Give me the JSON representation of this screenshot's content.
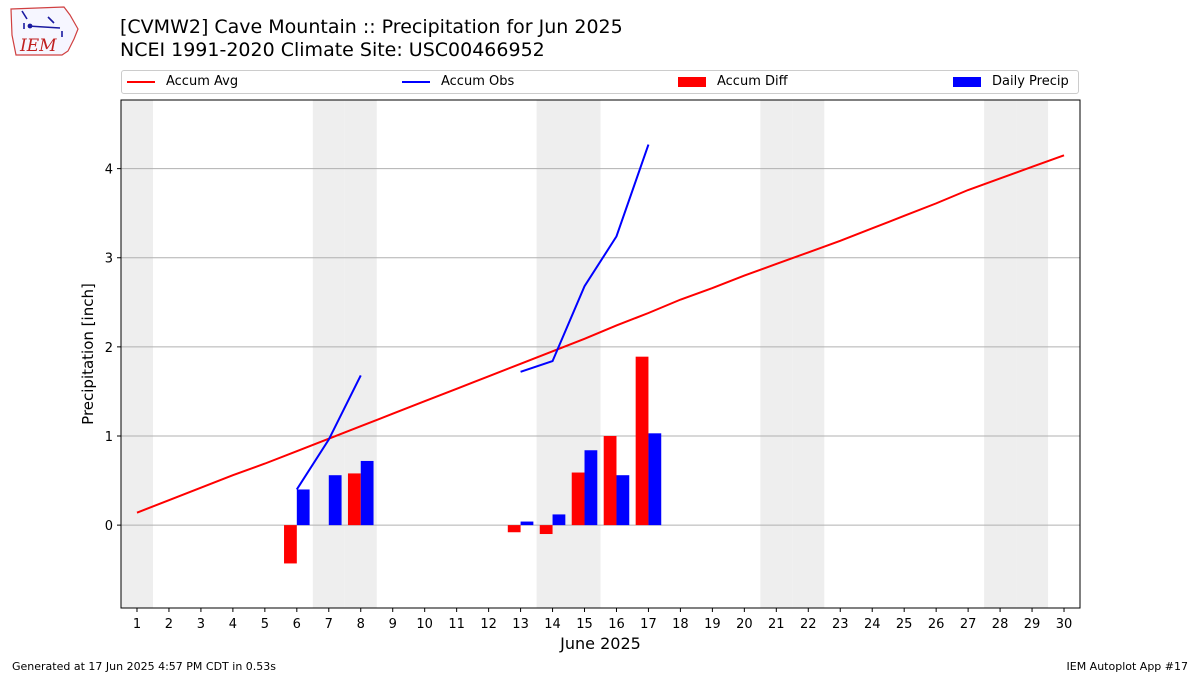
{
  "header": {
    "title_line1": "[CVMW2] Cave Mountain :: Precipitation for Jun 2025",
    "title_line2": "NCEI 1991-2020 Climate Site: USC00466952",
    "logo_text": "IEM"
  },
  "footer": {
    "left": "Generated at 17 Jun 2025 4:57 PM CDT in 0.53s",
    "right": "IEM Autoplot App #17"
  },
  "colors": {
    "avg": "#ff0000",
    "obs": "#0000ff",
    "diff": "#ff0000",
    "daily": "#0000ff",
    "weekend": "#eeeeee",
    "grid": "#b0b0b0"
  },
  "chart_data": {
    "type": "bar",
    "xlabel": "June 2025",
    "ylabel": "Precipitation [inch]",
    "xlim": [
      0.5,
      30.5
    ],
    "ylim": [
      -0.93,
      4.77
    ],
    "yticks": [
      0,
      1,
      2,
      3,
      4
    ],
    "grid": "y",
    "legend_placement": "top",
    "days": [
      1,
      2,
      3,
      4,
      5,
      6,
      7,
      8,
      9,
      10,
      11,
      12,
      13,
      14,
      15,
      16,
      17,
      18,
      19,
      20,
      21,
      22,
      23,
      24,
      25,
      26,
      27,
      28,
      29,
      30
    ],
    "shaded_days": [
      1,
      7,
      8,
      14,
      15,
      21,
      22,
      28,
      29
    ],
    "legend": [
      {
        "label": "Accum Avg",
        "kind": "line",
        "color": "#ff0000"
      },
      {
        "label": "Accum Obs",
        "kind": "line",
        "color": "#0000ff"
      },
      {
        "label": "Accum Diff",
        "kind": "bar",
        "color": "#ff0000"
      },
      {
        "label": "Daily Precip",
        "kind": "bar",
        "color": "#0000ff"
      }
    ],
    "accum_avg": [
      0.14,
      0.28,
      0.42,
      0.56,
      0.69,
      0.83,
      0.97,
      1.11,
      1.25,
      1.39,
      1.53,
      1.67,
      1.81,
      1.95,
      2.09,
      2.24,
      2.38,
      2.53,
      2.66,
      2.8,
      2.93,
      3.06,
      3.19,
      3.33,
      3.47,
      3.61,
      3.76,
      3.89,
      4.02,
      4.15
    ],
    "accum_obs_segments": [
      [
        [
          6,
          0.4
        ],
        [
          7,
          0.96
        ],
        [
          8,
          1.68
        ]
      ],
      [
        [
          13,
          1.72
        ],
        [
          14,
          1.84
        ],
        [
          15,
          2.68
        ],
        [
          16,
          3.24
        ],
        [
          17,
          4.27
        ]
      ]
    ],
    "accum_diff": [
      {
        "day": 6,
        "value": -0.43
      },
      {
        "day": 8,
        "value": 0.58
      },
      {
        "day": 13,
        "value": -0.08
      },
      {
        "day": 14,
        "value": -0.1
      },
      {
        "day": 15,
        "value": 0.59
      },
      {
        "day": 16,
        "value": 1.0
      },
      {
        "day": 17,
        "value": 1.89
      }
    ],
    "daily_precip": [
      {
        "day": 6,
        "value": 0.4
      },
      {
        "day": 7,
        "value": 0.56
      },
      {
        "day": 8,
        "value": 0.72
      },
      {
        "day": 13,
        "value": 0.04
      },
      {
        "day": 14,
        "value": 0.12
      },
      {
        "day": 15,
        "value": 0.84
      },
      {
        "day": 16,
        "value": 0.56
      },
      {
        "day": 17,
        "value": 1.03
      }
    ]
  }
}
